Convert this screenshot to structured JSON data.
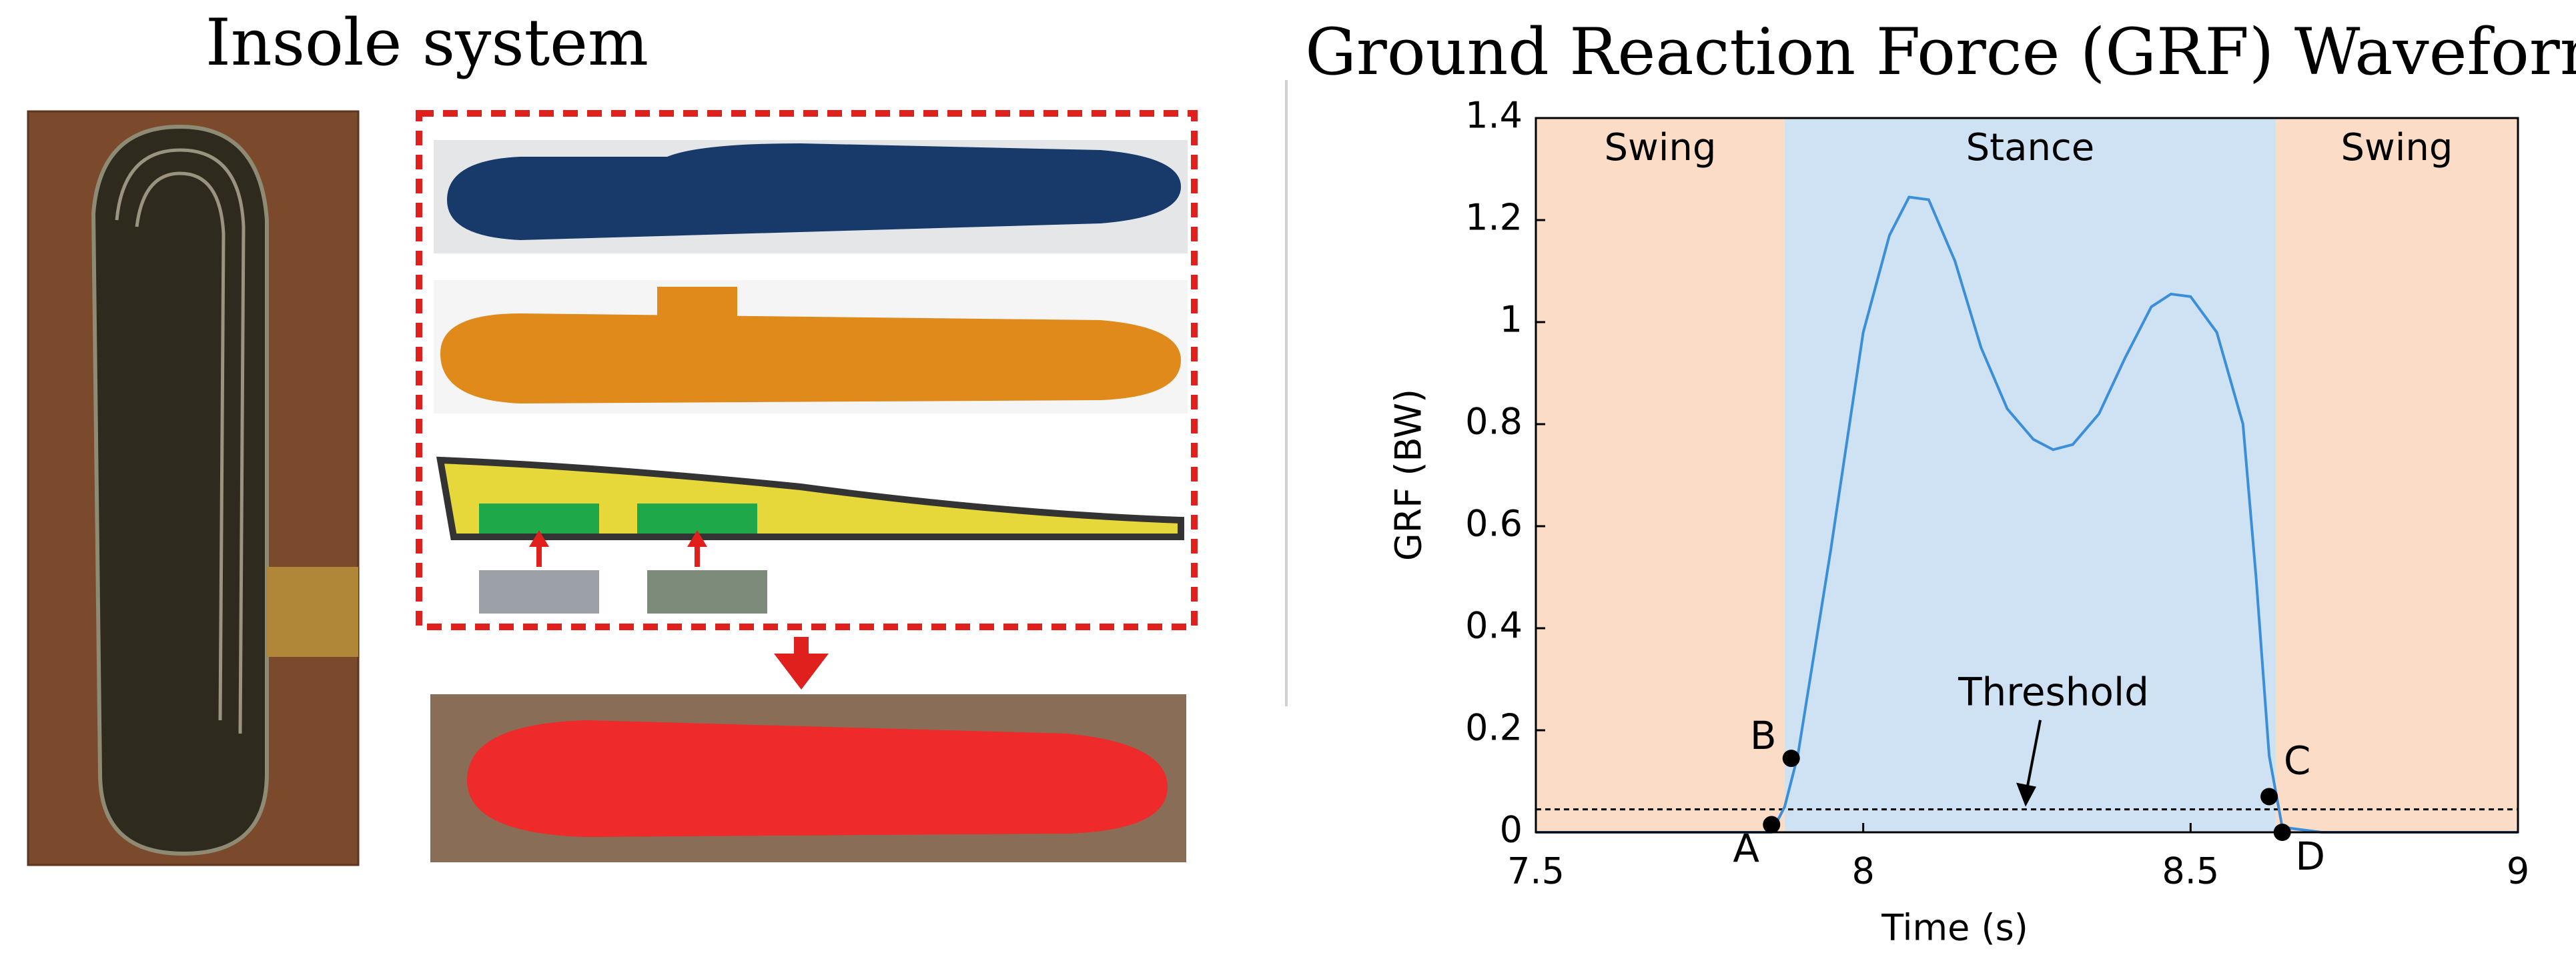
{
  "left_panel": {
    "title": "Insole system"
  },
  "chart_data": {
    "type": "line",
    "title": "Ground Reaction Force (GRF) Waveform",
    "x_label": "Time (s)",
    "y_label": "GRF (BW)",
    "xlim": [
      7.5,
      9
    ],
    "ylim": [
      0,
      1.4
    ],
    "xticks": [
      7.5,
      8,
      8.5,
      9
    ],
    "yticks": [
      0,
      0.2,
      0.4,
      0.6,
      0.8,
      1,
      1.2,
      1.4
    ],
    "regions": [
      {
        "label": "Swing",
        "start": 7.5,
        "end": 7.88,
        "color": "#fbdcc6"
      },
      {
        "label": "Stance",
        "start": 7.88,
        "end": 8.63,
        "color": "#cfe2f3"
      },
      {
        "label": "Swing",
        "start": 8.63,
        "end": 9,
        "color": "#fbdcc6"
      }
    ],
    "color": "#3b8fd8",
    "x": [
      7.5,
      7.86,
      7.88,
      7.9,
      7.95,
      8.0,
      8.04,
      8.07,
      8.1,
      8.14,
      8.18,
      8.22,
      8.26,
      8.29,
      8.32,
      8.36,
      8.4,
      8.44,
      8.47,
      8.5,
      8.54,
      8.58,
      8.6,
      8.62,
      8.64,
      8.7,
      9
    ],
    "values": [
      0,
      0,
      0.05,
      0.15,
      0.55,
      0.98,
      1.17,
      1.245,
      1.24,
      1.12,
      0.95,
      0.83,
      0.77,
      0.75,
      0.76,
      0.82,
      0.93,
      1.03,
      1.055,
      1.05,
      0.98,
      0.8,
      0.5,
      0.15,
      0.01,
      0,
      0
    ],
    "threshold": {
      "label": "Threshold",
      "value": 0.045
    },
    "points": [
      {
        "label": "A",
        "x": 7.86,
        "y": 0.015
      },
      {
        "label": "B",
        "x": 7.89,
        "y": 0.145
      },
      {
        "label": "C",
        "x": 8.62,
        "y": 0.07
      },
      {
        "label": "D",
        "x": 8.64,
        "y": 0
      }
    ]
  }
}
